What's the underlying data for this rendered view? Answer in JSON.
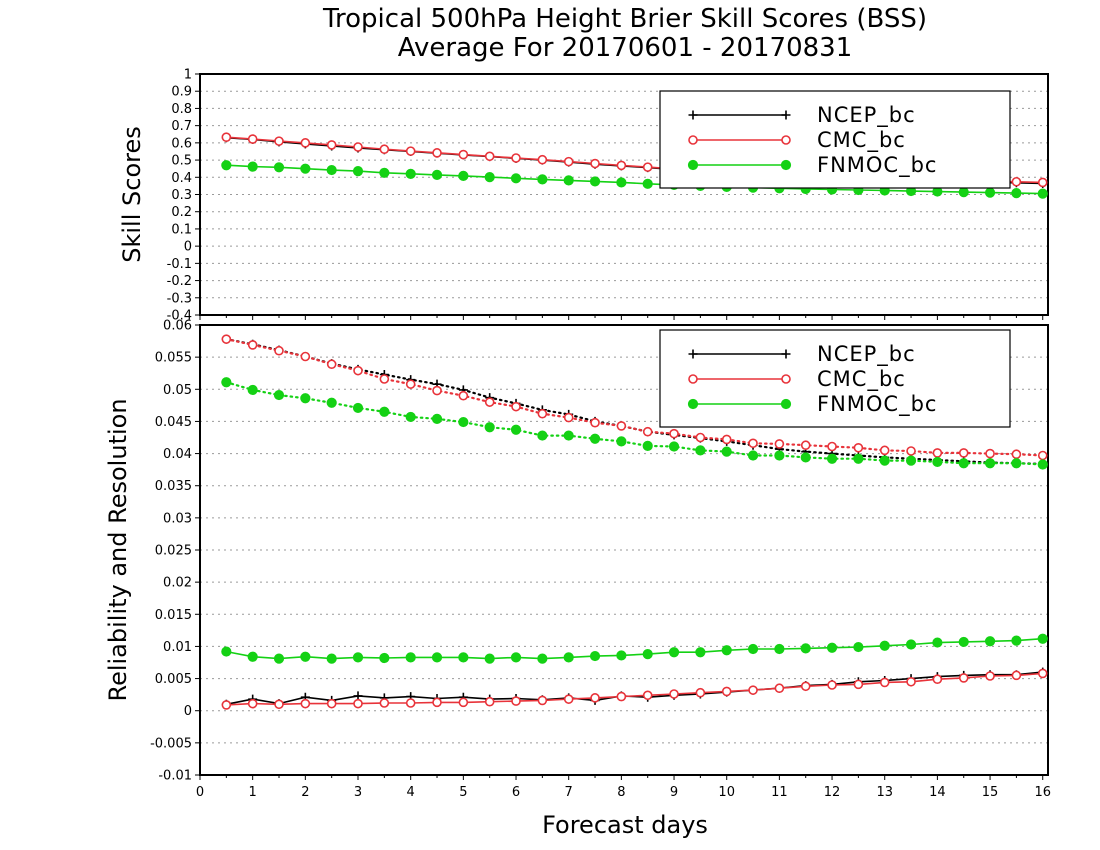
{
  "title_line1": "Tropical 500hPa Height Brier Skill Scores (BSS)",
  "title_line2": "Average For 20170601 - 20170831",
  "xlabel": "Forecast days",
  "colors": {
    "ncep": "#000000",
    "cmc": "#e8333a",
    "fnmoc": "#14d114",
    "grid": "#9a9a9a"
  },
  "chart_data": [
    {
      "type": "line",
      "ylabel": "Skill Scores",
      "xlim": [
        0,
        16.1
      ],
      "ylim": [
        -0.4,
        1
      ],
      "x_ticks": [
        "0",
        "1",
        "2",
        "3",
        "4",
        "5",
        "6",
        "7",
        "8",
        "9",
        "10",
        "11",
        "12",
        "13",
        "14",
        "15",
        "16"
      ],
      "y_ticks": [
        "-0.4",
        "-0.3",
        "-0.2",
        "-0.1",
        "0",
        "0.1",
        "0.2",
        "0.3",
        "0.4",
        "0.5",
        "0.6",
        "0.7",
        "0.8",
        "0.9",
        "1"
      ],
      "grid": true,
      "legend_position": "top-right",
      "x": [
        0.5,
        1,
        1.5,
        2,
        2.5,
        3,
        3.5,
        4,
        4.5,
        5,
        5.5,
        6,
        6.5,
        7,
        7.5,
        8,
        8.5,
        9,
        9.5,
        10,
        10.5,
        11,
        11.5,
        12,
        12.5,
        13,
        13.5,
        14,
        14.5,
        15,
        15.5,
        16
      ],
      "series": [
        {
          "name": "NCEP_bc",
          "key": "ncep",
          "marker": "plus",
          "style": "solid",
          "values": [
            0.63,
            0.62,
            0.606,
            0.594,
            0.582,
            0.57,
            0.56,
            0.55,
            0.54,
            0.53,
            0.52,
            0.51,
            0.5,
            0.488,
            0.476,
            0.466,
            0.456,
            0.446,
            0.436,
            0.428,
            0.42,
            0.414,
            0.408,
            0.402,
            0.396,
            0.391,
            0.386,
            0.381,
            0.376,
            0.372,
            0.368,
            0.364
          ]
        },
        {
          "name": "CMC_bc",
          "key": "cmc",
          "marker": "circle-open",
          "style": "solid",
          "values": [
            0.633,
            0.622,
            0.61,
            0.6,
            0.588,
            0.576,
            0.563,
            0.552,
            0.542,
            0.532,
            0.522,
            0.512,
            0.502,
            0.491,
            0.48,
            0.469,
            0.459,
            0.449,
            0.44,
            0.431,
            0.424,
            0.418,
            0.412,
            0.406,
            0.4,
            0.395,
            0.39,
            0.386,
            0.382,
            0.378,
            0.374,
            0.37
          ]
        },
        {
          "name": "FNMOC_bc",
          "key": "fnmoc",
          "marker": "circle-filled",
          "style": "solid",
          "values": [
            0.47,
            0.462,
            0.458,
            0.45,
            0.442,
            0.436,
            0.426,
            0.42,
            0.414,
            0.408,
            0.401,
            0.394,
            0.388,
            0.382,
            0.376,
            0.37,
            0.362,
            0.356,
            0.35,
            0.344,
            0.34,
            0.336,
            0.332,
            0.329,
            0.326,
            0.323,
            0.32,
            0.317,
            0.314,
            0.311,
            0.308,
            0.305
          ]
        }
      ]
    },
    {
      "type": "line",
      "ylabel": "Reliability and Resolution",
      "xlim": [
        0,
        16.1
      ],
      "ylim": [
        -0.01,
        0.06
      ],
      "x_ticks": [
        "0",
        "1",
        "2",
        "3",
        "4",
        "5",
        "6",
        "7",
        "8",
        "9",
        "10",
        "11",
        "12",
        "13",
        "14",
        "15",
        "16"
      ],
      "y_ticks": [
        "-0.01",
        "-0.005",
        "0",
        "0.005",
        "0.01",
        "0.015",
        "0.02",
        "0.025",
        "0.03",
        "0.035",
        "0.04",
        "0.045",
        "0.05",
        "0.055",
        "0.06"
      ],
      "grid": true,
      "legend_position": "top-right",
      "x": [
        0.5,
        1,
        1.5,
        2,
        2.5,
        3,
        3.5,
        4,
        4.5,
        5,
        5.5,
        6,
        6.5,
        7,
        7.5,
        8,
        8.5,
        9,
        9.5,
        10,
        10.5,
        11,
        11.5,
        12,
        12.5,
        13,
        13.5,
        14,
        14.5,
        15,
        15.5,
        16
      ],
      "series": [
        {
          "name": "NCEP_bc",
          "key": "ncep",
          "marker": "plus",
          "style": "dotted",
          "group": "resolution",
          "values": [
            0.0578,
            0.057,
            0.0561,
            0.0551,
            0.054,
            0.0531,
            0.0523,
            0.0515,
            0.0508,
            0.0499,
            0.0487,
            0.0478,
            0.0468,
            0.0461,
            0.045,
            0.0443,
            0.0434,
            0.0429,
            0.0424,
            0.0419,
            0.0413,
            0.0407,
            0.0403,
            0.04,
            0.0397,
            0.0394,
            0.0392,
            0.039,
            0.0388,
            0.0386,
            0.0385,
            0.0384
          ]
        },
        {
          "name": "CMC_bc",
          "key": "cmc",
          "marker": "circle-open",
          "style": "dotted",
          "group": "resolution",
          "values": [
            0.0578,
            0.0569,
            0.056,
            0.0551,
            0.0539,
            0.0529,
            0.0516,
            0.0508,
            0.0498,
            0.049,
            0.048,
            0.0473,
            0.0462,
            0.0456,
            0.0448,
            0.0443,
            0.0434,
            0.0431,
            0.0425,
            0.0422,
            0.0416,
            0.0415,
            0.0413,
            0.0411,
            0.0409,
            0.0405,
            0.0404,
            0.0401,
            0.0401,
            0.04,
            0.0399,
            0.0397
          ]
        },
        {
          "name": "FNMOC_bc",
          "key": "fnmoc",
          "marker": "circle-filled",
          "style": "dotted",
          "group": "resolution",
          "values": [
            0.0511,
            0.0499,
            0.0491,
            0.0486,
            0.0479,
            0.0471,
            0.0465,
            0.0457,
            0.0454,
            0.0449,
            0.0441,
            0.0437,
            0.0428,
            0.0428,
            0.0423,
            0.0419,
            0.0412,
            0.0411,
            0.0405,
            0.0403,
            0.0397,
            0.0397,
            0.0394,
            0.0392,
            0.0392,
            0.0389,
            0.0389,
            0.0387,
            0.0385,
            0.0385,
            0.0385,
            0.0383
          ]
        },
        {
          "name": "NCEP_bc",
          "key": "ncep",
          "marker": "plus",
          "style": "solid",
          "group": "reliability",
          "values": [
            0.001,
            0.0018,
            0.0011,
            0.0021,
            0.0016,
            0.0023,
            0.002,
            0.0022,
            0.0019,
            0.0021,
            0.0018,
            0.0019,
            0.0017,
            0.002,
            0.0016,
            0.0023,
            0.0021,
            0.0024,
            0.0026,
            0.0029,
            0.0032,
            0.0035,
            0.0039,
            0.0041,
            0.0045,
            0.0047,
            0.005,
            0.0053,
            0.0055,
            0.0056,
            0.0056,
            0.006
          ]
        },
        {
          "name": "CMC_bc",
          "key": "cmc",
          "marker": "circle-open",
          "style": "solid",
          "group": "reliability",
          "values": [
            0.0009,
            0.0011,
            0.001,
            0.0011,
            0.0011,
            0.0011,
            0.0012,
            0.0012,
            0.0013,
            0.0013,
            0.0014,
            0.0015,
            0.0016,
            0.0018,
            0.002,
            0.0022,
            0.0024,
            0.0026,
            0.0028,
            0.003,
            0.0032,
            0.0035,
            0.0038,
            0.004,
            0.0041,
            0.0044,
            0.0045,
            0.0049,
            0.0051,
            0.0054,
            0.0055,
            0.0058
          ]
        },
        {
          "name": "FNMOC_bc",
          "key": "fnmoc",
          "marker": "circle-filled",
          "style": "solid",
          "group": "reliability",
          "values": [
            0.0092,
            0.0084,
            0.0081,
            0.0084,
            0.0081,
            0.0083,
            0.0082,
            0.0083,
            0.0083,
            0.0083,
            0.0081,
            0.0083,
            0.0081,
            0.0083,
            0.0085,
            0.0086,
            0.0088,
            0.0091,
            0.0091,
            0.0094,
            0.0096,
            0.0096,
            0.0097,
            0.0098,
            0.0099,
            0.0101,
            0.0103,
            0.0106,
            0.0107,
            0.0108,
            0.0109,
            0.0112
          ]
        }
      ]
    }
  ]
}
